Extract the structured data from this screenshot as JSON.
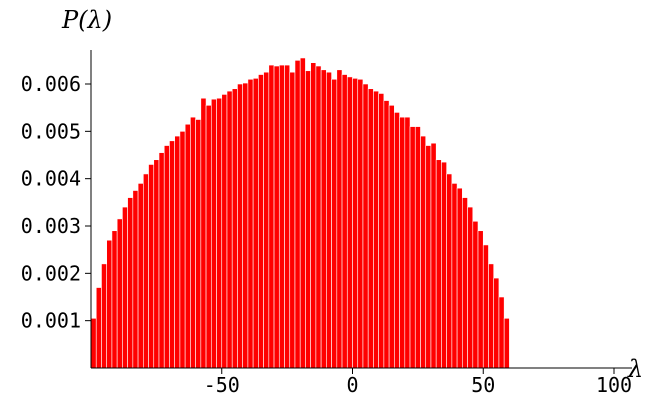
{
  "chart_data": {
    "type": "bar",
    "title": "",
    "xlabel": "λ",
    "ylabel": "P(λ)",
    "xlim": [
      -100,
      100
    ],
    "ylim": [
      0,
      0.0065
    ],
    "bar_color": "#ff0000",
    "grid": false,
    "bin_width": 2,
    "bin_start": -100,
    "values": [
      0.00105,
      0.0017,
      0.0022,
      0.0027,
      0.0029,
      0.00315,
      0.0034,
      0.0036,
      0.00375,
      0.0039,
      0.0041,
      0.0043,
      0.0044,
      0.00455,
      0.0047,
      0.0048,
      0.0049,
      0.005,
      0.00515,
      0.0053,
      0.00525,
      0.0057,
      0.00555,
      0.00568,
      0.0057,
      0.00578,
      0.00585,
      0.0059,
      0.006,
      0.00602,
      0.0061,
      0.00612,
      0.0062,
      0.00625,
      0.0064,
      0.00638,
      0.0064,
      0.0064,
      0.00625,
      0.0065,
      0.00655,
      0.00628,
      0.00645,
      0.00638,
      0.0063,
      0.00625,
      0.0061,
      0.0063,
      0.0062,
      0.00615,
      0.00612,
      0.0061,
      0.006,
      0.0059,
      0.00585,
      0.0058,
      0.00565,
      0.00555,
      0.0054,
      0.0053,
      0.0053,
      0.0051,
      0.0051,
      0.0049,
      0.0047,
      0.00475,
      0.0044,
      0.00435,
      0.0041,
      0.0039,
      0.0038,
      0.0036,
      0.0034,
      0.0031,
      0.0029,
      0.0026,
      0.0022,
      0.0019,
      0.0015,
      0.00105
    ],
    "x_ticks": [
      -50,
      0,
      50,
      100
    ],
    "x_tick_labels": [
      "-50",
      "0",
      "50",
      "100"
    ],
    "y_ticks": [
      0.001,
      0.002,
      0.003,
      0.004,
      0.005,
      0.006
    ],
    "y_tick_labels": [
      "0.001",
      "0.002",
      "0.003",
      "0.004",
      "0.005",
      "0.006"
    ]
  }
}
